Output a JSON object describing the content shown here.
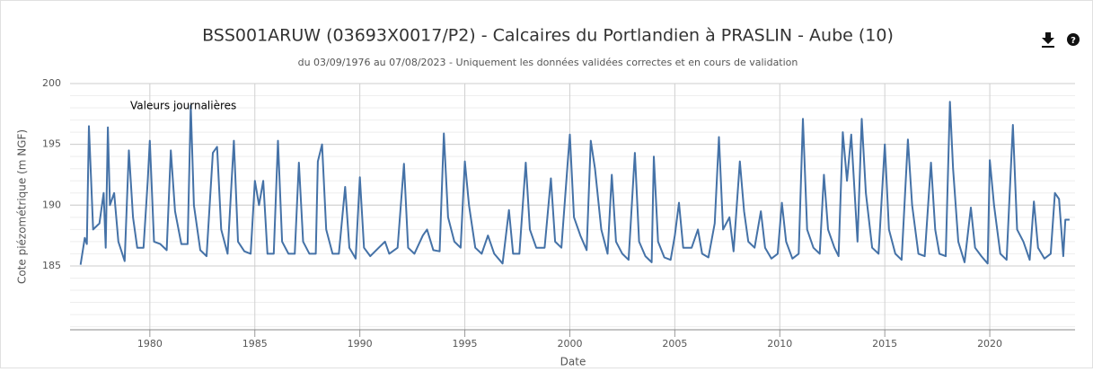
{
  "chart_data": {
    "type": "line",
    "title": "BSS001ARUW (03693X0017/P2) - Calcaires du Portlandien à PRASLIN - Aube (10)",
    "subtitle": "du 03/09/1976 au 07/08/2023 - Uniquement les données validées correctes et en cours de validation",
    "annotation": "Valeurs journalières",
    "x_label": "Date",
    "y_label": "Cote piézométrique (m NGF)",
    "color": "#4572a7",
    "grid": true,
    "xlim": [
      1976.2,
      2024.06
    ],
    "xticks": [
      1980,
      1985,
      1990,
      1995,
      2000,
      2005,
      2010,
      2015,
      2020
    ],
    "ylim": [
      179.75,
      200
    ],
    "yticks": [
      185,
      190,
      195,
      200
    ],
    "x": [
      1976.7,
      1976.9,
      1977.0,
      1977.1,
      1977.3,
      1977.6,
      1977.8,
      1977.9,
      1978.0,
      1978.1,
      1978.3,
      1978.5,
      1978.8,
      1979.0,
      1979.2,
      1979.4,
      1979.7,
      1979.9,
      1980.0,
      1980.2,
      1980.5,
      1980.8,
      1981.0,
      1981.2,
      1981.5,
      1981.8,
      1981.95,
      1982.1,
      1982.4,
      1982.7,
      1983.0,
      1983.2,
      1983.4,
      1983.7,
      1984.0,
      1984.2,
      1984.5,
      1984.8,
      1985.0,
      1985.2,
      1985.4,
      1985.6,
      1985.9,
      1986.1,
      1986.3,
      1986.6,
      1986.9,
      1987.1,
      1987.3,
      1987.6,
      1987.9,
      1988.0,
      1988.2,
      1988.4,
      1988.7,
      1989.0,
      1989.3,
      1989.5,
      1989.8,
      1990.0,
      1990.2,
      1990.5,
      1990.9,
      1991.2,
      1991.4,
      1991.8,
      1992.1,
      1992.3,
      1992.6,
      1993.0,
      1993.2,
      1993.5,
      1993.8,
      1994.0,
      1994.2,
      1994.5,
      1994.8,
      1995.0,
      1995.2,
      1995.5,
      1995.8,
      1996.1,
      1996.4,
      1996.8,
      1997.1,
      1997.3,
      1997.6,
      1997.9,
      1998.1,
      1998.4,
      1998.8,
      1999.1,
      1999.3,
      1999.6,
      1999.9,
      2000.0,
      2000.2,
      2000.5,
      2000.8,
      2001.0,
      2001.2,
      2001.5,
      2001.8,
      2002.0,
      2002.2,
      2002.5,
      2002.8,
      2003.1,
      2003.3,
      2003.6,
      2003.9,
      2004.0,
      2004.2,
      2004.5,
      2004.8,
      2005.0,
      2005.2,
      2005.4,
      2005.8,
      2006.1,
      2006.3,
      2006.6,
      2006.9,
      2007.1,
      2007.3,
      2007.6,
      2007.8,
      2008.1,
      2008.3,
      2008.5,
      2008.8,
      2009.1,
      2009.3,
      2009.6,
      2009.9,
      2010.1,
      2010.3,
      2010.6,
      2010.9,
      2011.1,
      2011.3,
      2011.6,
      2011.9,
      2012.1,
      2012.3,
      2012.6,
      2012.8,
      2013.0,
      2013.2,
      2013.4,
      2013.7,
      2013.9,
      2014.1,
      2014.4,
      2014.7,
      2015.0,
      2015.2,
      2015.5,
      2015.8,
      2016.1,
      2016.3,
      2016.6,
      2016.9,
      2017.2,
      2017.4,
      2017.6,
      2017.9,
      2018.1,
      2018.25,
      2018.5,
      2018.8,
      2019.1,
      2019.3,
      2019.6,
      2019.9,
      2020.0,
      2020.2,
      2020.5,
      2020.8,
      2021.1,
      2021.3,
      2021.6,
      2021.9,
      2022.1,
      2022.3,
      2022.6,
      2022.9,
      2023.1,
      2023.3,
      2023.5,
      2023.6,
      2023.8
    ],
    "values": [
      185.1,
      187.3,
      186.8,
      196.5,
      188,
      188.5,
      191,
      186.5,
      196.4,
      190,
      191,
      187,
      185.4,
      194.5,
      189,
      186.5,
      186.5,
      192,
      195.3,
      187,
      186.8,
      186.3,
      194.5,
      189.5,
      186.8,
      186.8,
      198.2,
      190,
      186.3,
      185.8,
      194.3,
      194.8,
      188,
      186,
      195.3,
      187,
      186.2,
      186,
      192,
      190,
      192,
      186,
      186,
      195.3,
      187,
      186,
      186,
      193.5,
      187,
      186,
      186,
      193.6,
      195,
      188,
      186,
      186,
      191.5,
      186.5,
      185.6,
      192.3,
      186.5,
      185.8,
      186.5,
      187,
      186,
      186.5,
      193.4,
      186.5,
      186,
      187.5,
      188,
      186.3,
      186.2,
      195.9,
      189,
      187,
      186.5,
      193.6,
      190,
      186.5,
      186,
      187.5,
      186,
      185.2,
      189.6,
      186,
      186,
      193.5,
      188,
      186.5,
      186.5,
      192.2,
      187,
      186.5,
      193.5,
      195.8,
      189,
      187.5,
      186.3,
      195.3,
      193,
      188,
      186,
      192.5,
      187,
      186,
      185.5,
      194.3,
      187,
      185.8,
      185.3,
      194,
      187,
      185.7,
      185.5,
      187.5,
      190.2,
      186.5,
      186.5,
      188,
      186,
      185.7,
      188.5,
      195.6,
      188,
      189,
      186.2,
      193.6,
      189.5,
      187,
      186.5,
      189.5,
      186.5,
      185.6,
      186,
      190.2,
      187,
      185.6,
      186,
      197.1,
      188,
      186.5,
      186,
      192.5,
      188,
      186.5,
      185.8,
      196,
      192,
      195.8,
      187,
      197.1,
      191,
      186.5,
      186,
      195,
      188,
      186,
      185.5,
      195.4,
      190,
      186,
      185.8,
      193.5,
      188,
      186,
      185.8,
      198.5,
      193,
      187,
      185.3,
      189.8,
      186.5,
      185.8,
      185.2,
      193.7,
      190,
      186,
      185.5,
      196.6,
      188,
      187,
      185.5,
      190.3,
      186.5,
      185.6,
      186,
      191,
      190.5,
      185.8,
      188.8,
      188.8
    ]
  }
}
